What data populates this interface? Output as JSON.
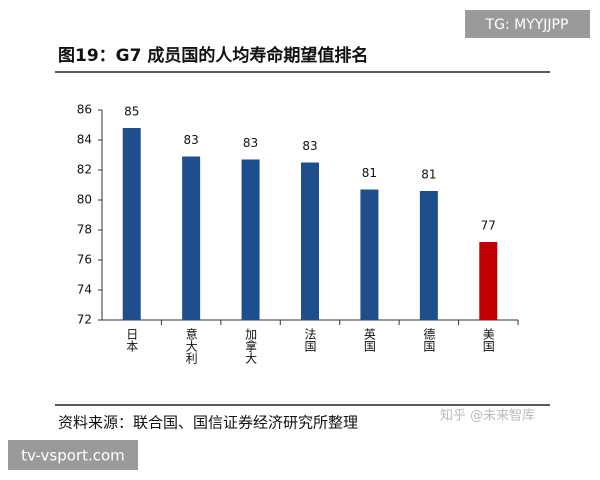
{
  "chart_data": {
    "type": "bar",
    "title": "图19：G7 成员国的人均寿命期望值排名",
    "source": "资料来源：联合国、国信证券经济研究所整理",
    "categories": [
      "日本",
      "意大利",
      "加拿大",
      "法国",
      "英国",
      "德国",
      "美国"
    ],
    "values": [
      84.8,
      82.9,
      82.7,
      82.5,
      80.7,
      80.6,
      77.2
    ],
    "value_labels": [
      "85",
      "83",
      "83",
      "83",
      "81",
      "81",
      "77"
    ],
    "colors": [
      "#1f4e8c",
      "#1f4e8c",
      "#1f4e8c",
      "#1f4e8c",
      "#1f4e8c",
      "#1f4e8c",
      "#c00000"
    ],
    "ylim": [
      72,
      86
    ],
    "yticks": [
      72,
      74,
      76,
      78,
      80,
      82,
      84,
      86
    ],
    "grid": false
  },
  "watermarks": [
    "TG: MYYJJPP",
    "知乎 @未来智库",
    "tv-vsport.com"
  ]
}
